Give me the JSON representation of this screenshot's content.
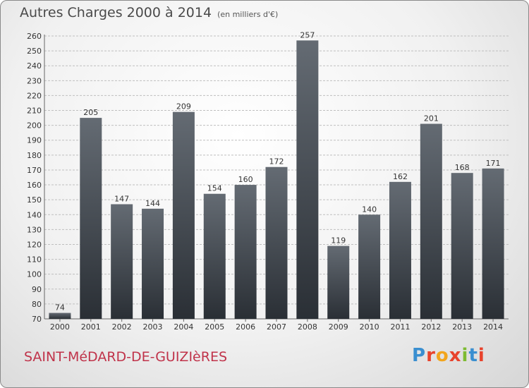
{
  "header": {
    "title": "Autres Charges 2000 à 2014",
    "subtitle": "(en milliers d'€)"
  },
  "footer": {
    "city": "SAINT-MéDARD-DE-GUIZIèRES",
    "logo": "Proxiti",
    "logo_colors": [
      "#3a8fd0",
      "#e8432c",
      "#f2a51d",
      "#e8432c",
      "#7dbb32",
      "#3a8fd0",
      "#e8432c"
    ]
  },
  "colors": {
    "bar_top": "#646b73",
    "bar_bottom": "#2a2f35",
    "grid": "#bfbfbf"
  },
  "chart_data": {
    "type": "bar",
    "categories": [
      "2000",
      "2001",
      "2002",
      "2003",
      "2004",
      "2005",
      "2006",
      "2007",
      "2008",
      "2009",
      "2010",
      "2011",
      "2012",
      "2013",
      "2014"
    ],
    "values": [
      74,
      205,
      147,
      144,
      209,
      154,
      160,
      172,
      257,
      119,
      140,
      162,
      201,
      168,
      171
    ],
    "data_labels": [
      "74",
      "205",
      "147",
      "144",
      "209",
      "154",
      "160",
      "172",
      "257",
      "119",
      "140",
      "162",
      "201",
      "168",
      "171"
    ],
    "ylim": [
      70,
      260
    ],
    "yticks": [
      70,
      80,
      90,
      100,
      110,
      120,
      130,
      140,
      150,
      160,
      170,
      180,
      190,
      200,
      210,
      220,
      230,
      240,
      250,
      260
    ],
    "ytick_labels": [
      "70",
      "80",
      "90",
      "100",
      "110",
      "120",
      "130",
      "140",
      "150",
      "160",
      "170",
      "180",
      "190",
      "200",
      "210",
      "220",
      "230",
      "240",
      "250",
      "260"
    ],
    "grid": true,
    "legend": "none"
  }
}
